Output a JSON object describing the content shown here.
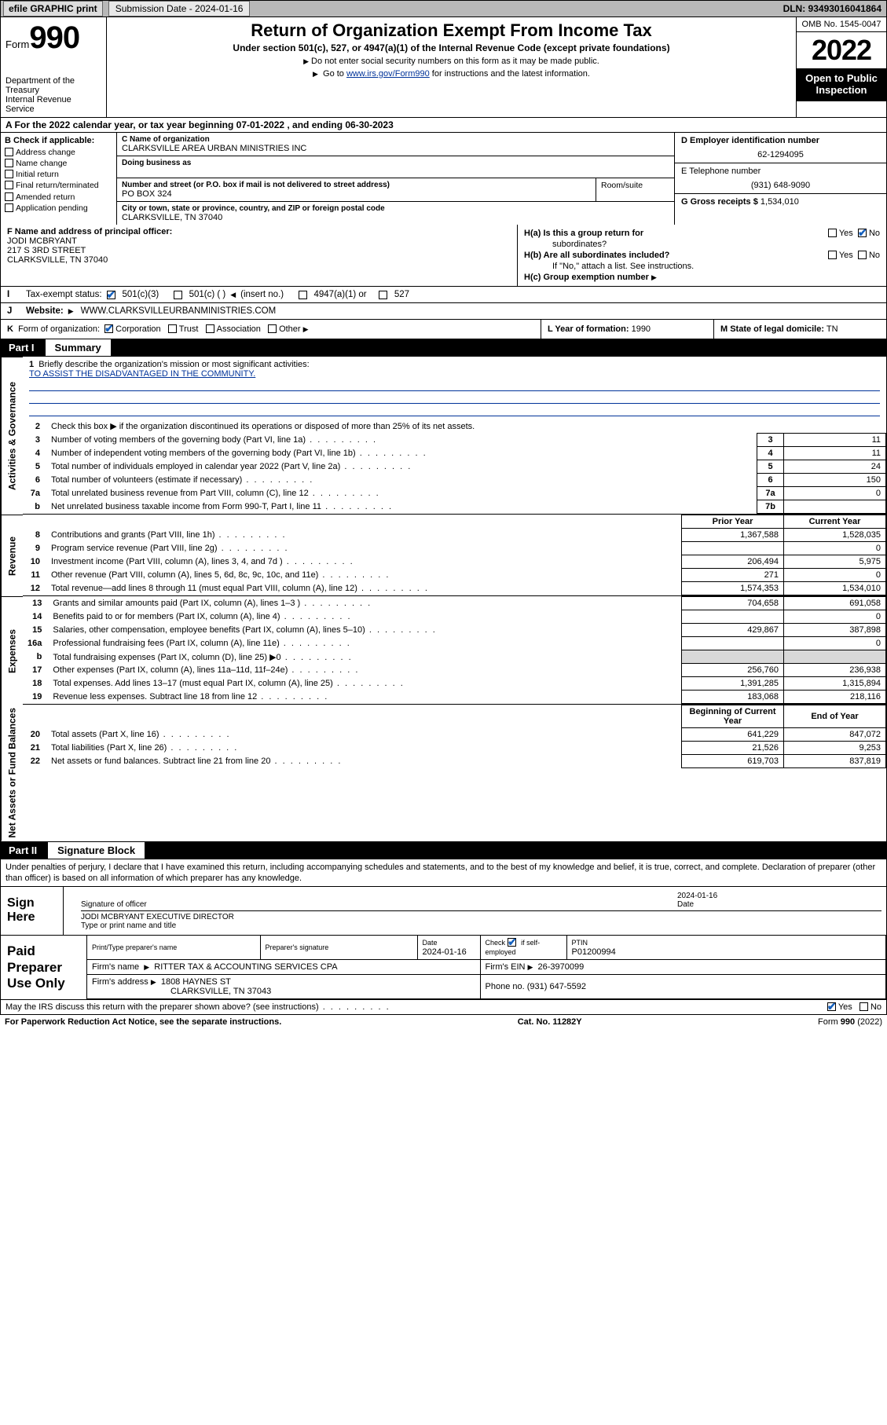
{
  "colors": {
    "link": "#003399",
    "check": "#1560bd",
    "topbar_bg": "#b8b8b8",
    "shade": "#d8d8d8",
    "black": "#000000",
    "white": "#ffffff"
  },
  "topbar": {
    "efile_label": "efile GRAPHIC print",
    "submission_label": "Submission Date - 2024-01-16",
    "dln_label": "DLN: 93493016041864"
  },
  "header": {
    "form_word": "Form",
    "form_no": "990",
    "dept": "Department of the Treasury",
    "irs": "Internal Revenue Service",
    "title": "Return of Organization Exempt From Income Tax",
    "subtitle": "Under section 501(c), 527, or 4947(a)(1) of the Internal Revenue Code (except private foundations)",
    "note1": "Do not enter social security numbers on this form as it may be made public.",
    "note2_pre": "Go to ",
    "note2_link": "www.irs.gov/Form990",
    "note2_post": " for instructions and the latest information.",
    "omb": "OMB No. 1545-0047",
    "year": "2022",
    "open_l1": "Open to Public",
    "open_l2": "Inspection"
  },
  "rowA": "A For the 2022 calendar year, or tax year beginning 07-01-2022   , and ending 06-30-2023",
  "colB": {
    "hdr": "B Check if applicable:",
    "items": [
      "Address change",
      "Name change",
      "Initial return",
      "Final return/terminated",
      "Amended return",
      "Application pending"
    ]
  },
  "colC": {
    "name_lbl": "C Name of organization",
    "name_val": "CLARKSVILLE AREA URBAN MINISTRIES INC",
    "dba_lbl": "Doing business as",
    "addr_lbl": "Number and street (or P.O. box if mail is not delivered to street address)",
    "room_lbl": "Room/suite",
    "addr_val": "PO BOX 324",
    "city_lbl": "City or town, state or province, country, and ZIP or foreign postal code",
    "city_val": "CLARKSVILLE, TN  37040"
  },
  "colD": {
    "ein_lbl": "D Employer identification number",
    "ein_val": "62-1294095",
    "tel_lbl": "E Telephone number",
    "tel_val": "(931) 648-9090",
    "gross_lbl": "G Gross receipts $",
    "gross_val": "1,534,010"
  },
  "rowF": {
    "f_lbl": "F Name and address of principal officer:",
    "f_name": "JODI MCBRYANT",
    "f_addr1": "217 S 3RD STREET",
    "f_addr2": "CLARKSVILLE, TN  37040",
    "ha_lbl": "H(a)  Is this a group return for",
    "ha_sub": "subordinates?",
    "hb_lbl": "H(b)  Are all subordinates included?",
    "hb_note": "If \"No,\" attach a list. See instructions.",
    "hc_lbl": "H(c)  Group exemption number",
    "yes": "Yes",
    "no": "No"
  },
  "rowI": {
    "lead": "I",
    "lbl": "Tax-exempt status:",
    "o1": "501(c)(3)",
    "o2": "501(c) (  )",
    "o2b": "(insert no.)",
    "o3": "4947(a)(1) or",
    "o4": "527"
  },
  "rowJ": {
    "lead": "J",
    "lbl": "Website:",
    "val": "WWW.CLARKSVILLEURBANMINISTRIES.COM"
  },
  "rowK": {
    "lead": "K",
    "lbl": "Form of organization:",
    "o1": "Corporation",
    "o2": "Trust",
    "o3": "Association",
    "o4": "Other"
  },
  "rowL": {
    "lbl": "L Year of formation:",
    "val": "1990"
  },
  "rowM": {
    "lbl": "M State of legal domicile:",
    "val": "TN"
  },
  "part1": {
    "label": "Part I",
    "title": "Summary"
  },
  "mission": {
    "lbl": "Briefly describe the organization's mission or most significant activities:",
    "val": "TO ASSIST THE DISADVANTAGED IN THE COMMUNITY."
  },
  "gov": {
    "l2": "Check this box ▶        if the organization discontinued its operations or disposed of more than 25% of its net assets.",
    "rows": [
      {
        "n": "3",
        "t": "Number of voting members of the governing body (Part VI, line 1a)",
        "b": "3",
        "v": "11"
      },
      {
        "n": "4",
        "t": "Number of independent voting members of the governing body (Part VI, line 1b)",
        "b": "4",
        "v": "11"
      },
      {
        "n": "5",
        "t": "Total number of individuals employed in calendar year 2022 (Part V, line 2a)",
        "b": "5",
        "v": "24"
      },
      {
        "n": "6",
        "t": "Total number of volunteers (estimate if necessary)",
        "b": "6",
        "v": "150"
      },
      {
        "n": "7a",
        "t": "Total unrelated business revenue from Part VIII, column (C), line 12",
        "b": "7a",
        "v": "0"
      },
      {
        "n": "b",
        "t": "Net unrelated business taxable income from Form 990-T, Part I, line 11",
        "b": "7b",
        "v": ""
      }
    ]
  },
  "twocol_hdr": {
    "py": "Prior Year",
    "cy": "Current Year",
    "bcy": "Beginning of Current Year",
    "ey": "End of Year"
  },
  "rev": [
    {
      "n": "8",
      "t": "Contributions and grants (Part VIII, line 1h)",
      "p": "1,367,588",
      "c": "1,528,035"
    },
    {
      "n": "9",
      "t": "Program service revenue (Part VIII, line 2g)",
      "p": "",
      "c": "0"
    },
    {
      "n": "10",
      "t": "Investment income (Part VIII, column (A), lines 3, 4, and 7d )",
      "p": "206,494",
      "c": "5,975"
    },
    {
      "n": "11",
      "t": "Other revenue (Part VIII, column (A), lines 5, 6d, 8c, 9c, 10c, and 11e)",
      "p": "271",
      "c": "0"
    },
    {
      "n": "12",
      "t": "Total revenue—add lines 8 through 11 (must equal Part VIII, column (A), line 12)",
      "p": "1,574,353",
      "c": "1,534,010"
    }
  ],
  "exp": [
    {
      "n": "13",
      "t": "Grants and similar amounts paid (Part IX, column (A), lines 1–3 )",
      "p": "704,658",
      "c": "691,058"
    },
    {
      "n": "14",
      "t": "Benefits paid to or for members (Part IX, column (A), line 4)",
      "p": "",
      "c": "0"
    },
    {
      "n": "15",
      "t": "Salaries, other compensation, employee benefits (Part IX, column (A), lines 5–10)",
      "p": "429,867",
      "c": "387,898"
    },
    {
      "n": "16a",
      "t": "Professional fundraising fees (Part IX, column (A), line 11e)",
      "p": "",
      "c": "0"
    },
    {
      "n": "b",
      "t": "Total fundraising expenses (Part IX, column (D), line 25) ▶0",
      "p": "__shade__",
      "c": "__shade__"
    },
    {
      "n": "17",
      "t": "Other expenses (Part IX, column (A), lines 11a–11d, 11f–24e)",
      "p": "256,760",
      "c": "236,938"
    },
    {
      "n": "18",
      "t": "Total expenses. Add lines 13–17 (must equal Part IX, column (A), line 25)",
      "p": "1,391,285",
      "c": "1,315,894"
    },
    {
      "n": "19",
      "t": "Revenue less expenses. Subtract line 18 from line 12",
      "p": "183,068",
      "c": "218,116"
    }
  ],
  "net": [
    {
      "n": "20",
      "t": "Total assets (Part X, line 16)",
      "p": "641,229",
      "c": "847,072"
    },
    {
      "n": "21",
      "t": "Total liabilities (Part X, line 26)",
      "p": "21,526",
      "c": "9,253"
    },
    {
      "n": "22",
      "t": "Net assets or fund balances. Subtract line 21 from line 20",
      "p": "619,703",
      "c": "837,819"
    }
  ],
  "part2": {
    "label": "Part II",
    "title": "Signature Block"
  },
  "sig": {
    "decl": "Under penalties of perjury, I declare that I have examined this return, including accompanying schedules and statements, and to the best of my knowledge and belief, it is true, correct, and complete. Declaration of preparer (other than officer) is based on all information of which preparer has any knowledge.",
    "here": "Sign Here",
    "sig_of": "Signature of officer",
    "date_lbl": "Date",
    "date_val": "2024-01-16",
    "typed": "JODI MCBRYANT  EXECUTIVE DIRECTOR",
    "typed_lbl": "Type or print name and title"
  },
  "prep": {
    "label": "Paid Preparer Use Only",
    "h1": "Print/Type preparer's name",
    "h2": "Preparer's signature",
    "h3": "Date",
    "h3v": "2024-01-16",
    "h4a": "Check",
    "h4b": "if self-employed",
    "h5": "PTIN",
    "h5v": "P01200994",
    "firm_lbl": "Firm's name",
    "firm_val": "RITTER TAX & ACCOUNTING SERVICES CPA",
    "ein_lbl": "Firm's EIN",
    "ein_val": "26-3970099",
    "addr_lbl": "Firm's address",
    "addr_val1": "1808 HAYNES ST",
    "addr_val2": "CLARKSVILLE, TN  37043",
    "ph_lbl": "Phone no.",
    "ph_val": "(931) 647-5592"
  },
  "discuss": {
    "q": "May the IRS discuss this return with the preparer shown above? (see instructions)",
    "yes": "Yes",
    "no": "No"
  },
  "footer": {
    "l": "For Paperwork Reduction Act Notice, see the separate instructions.",
    "c": "Cat. No. 11282Y",
    "r": "Form 990 (2022)"
  },
  "vlabels": {
    "gov": "Activities & Governance",
    "rev": "Revenue",
    "exp": "Expenses",
    "net": "Net Assets or Fund Balances"
  }
}
